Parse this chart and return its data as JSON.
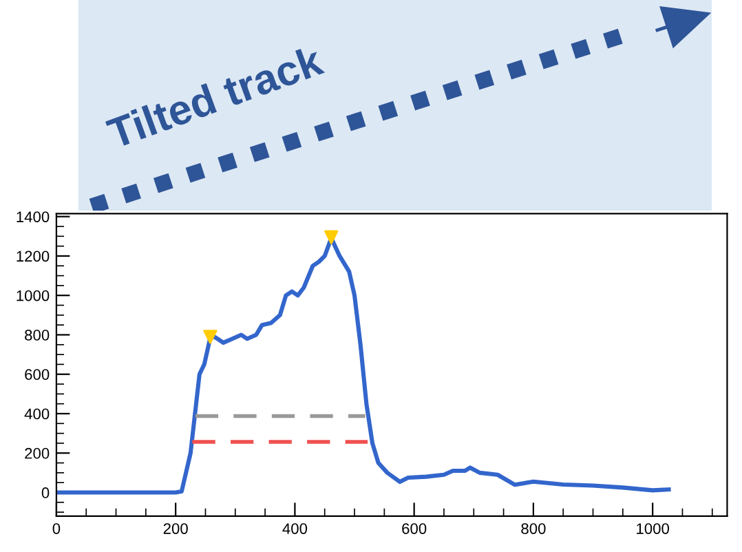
{
  "chart_data": {
    "type": "line",
    "annotations": [
      "Tilted track"
    ],
    "series": [
      {
        "color": "#3366cc",
        "x": [
          0,
          100,
          200,
          210,
          225,
          240,
          248,
          258,
          265,
          280,
          295,
          310,
          320,
          335,
          345,
          360,
          375,
          385,
          395,
          405,
          415,
          430,
          440,
          450,
          461,
          475,
          491,
          500,
          510,
          520,
          530,
          540,
          555,
          576,
          590,
          620,
          650,
          665,
          685,
          694,
          710,
          740,
          769,
          800,
          850,
          900,
          950,
          1000,
          1027
        ],
        "values": [
          0,
          0,
          0,
          5,
          200,
          600,
          650,
          784,
          790,
          760,
          780,
          800,
          780,
          800,
          850,
          860,
          900,
          1000,
          1020,
          1000,
          1040,
          1150,
          1170,
          1200,
          1291,
          1200,
          1121,
          1000,
          750,
          450,
          250,
          150,
          100,
          54,
          75,
          80,
          90,
          110,
          110,
          126,
          100,
          90,
          39,
          55,
          40,
          35,
          25,
          11,
          15
        ]
      },
      {
        "type": "line",
        "color": "#999999",
        "line_style": "dashed",
        "x": [
          233,
          518
        ],
        "values": [
          388,
          388
        ]
      },
      {
        "type": "line",
        "color": "#f05050",
        "line_style": "dashed",
        "x": [
          228,
          522
        ],
        "values": [
          257,
          257
        ]
      },
      {
        "type": "scatter",
        "color": "#ffcc00",
        "marker": "triangle",
        "x": [
          258,
          461
        ],
        "values": [
          790,
          1295
        ]
      }
    ],
    "xlim": [
      0,
      1125
    ],
    "ylim": [
      -120,
      1415
    ],
    "xticks": [
      0,
      200,
      400,
      600,
      800,
      1000
    ],
    "yticks": [
      0,
      200,
      400,
      600,
      800,
      1000,
      1200,
      1400
    ],
    "grid": false
  }
}
